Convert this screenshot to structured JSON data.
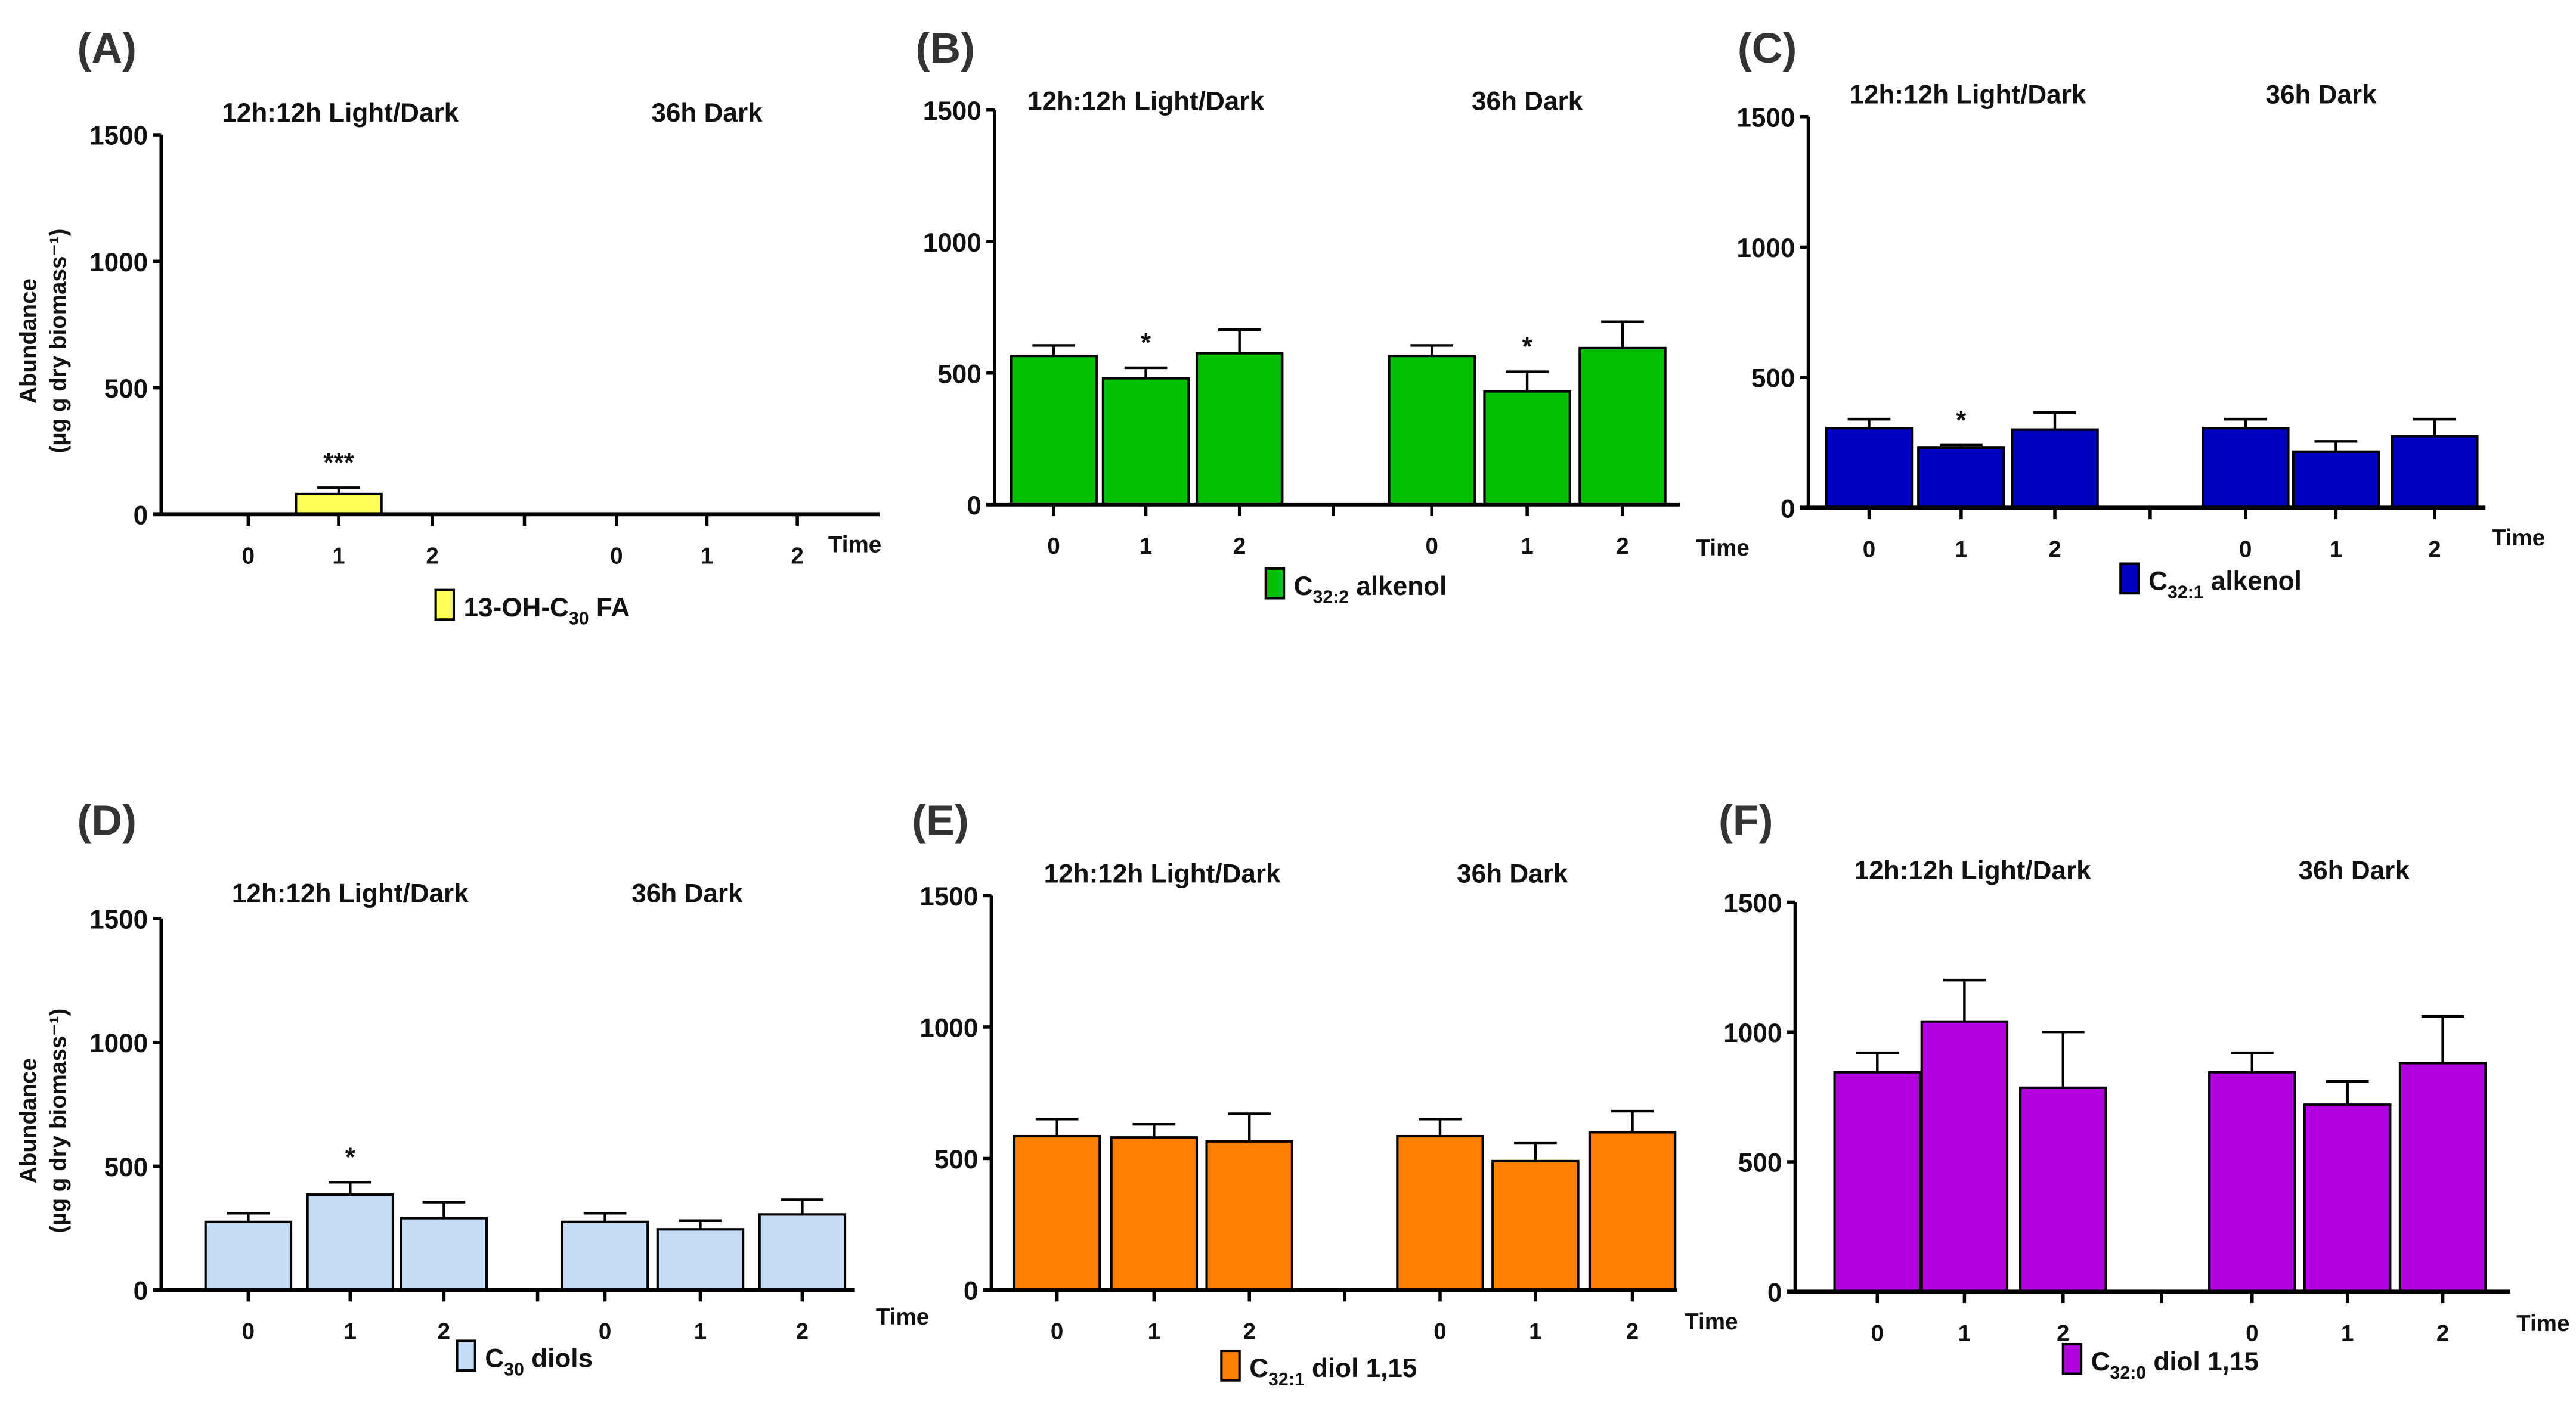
{
  "chart_data": [
    {
      "panel_label": "(A)",
      "type": "bar",
      "group_titles": [
        "12h:12h Light/Dark",
        "36h Dark"
      ],
      "categories": [
        "0",
        "1",
        "2",
        "0",
        "1",
        "2"
      ],
      "xlabel": "Time",
      "ylabel": [
        "Abundance",
        "(µg g dry biomass⁻¹)"
      ],
      "ylim": [
        0,
        1500
      ],
      "yticks": [
        "0",
        "500",
        "1000",
        "1500"
      ],
      "legend": {
        "prefix": "13-OH-C",
        "sub": "30",
        "suffix": "  FA"
      },
      "color": "#ffff55",
      "values": [
        0,
        80,
        0,
        0,
        0,
        0
      ],
      "errors": [
        0,
        25,
        0,
        0,
        0,
        0
      ],
      "significance": [
        "",
        "***",
        "",
        "",
        "",
        ""
      ]
    },
    {
      "panel_label": "(B)",
      "type": "bar",
      "group_titles": [
        "12h:12h Light/Dark",
        "36h Dark"
      ],
      "categories": [
        "0",
        "1",
        "2",
        "0",
        "1",
        "2"
      ],
      "xlabel": "Time",
      "ylabel": null,
      "ylim": [
        0,
        1500
      ],
      "yticks": [
        "0",
        "500",
        "1000",
        "1500"
      ],
      "legend": {
        "prefix": "C",
        "sub": "32:2",
        "suffix": " alkenol"
      },
      "color": "#00c000",
      "values": [
        565,
        480,
        575,
        565,
        430,
        595
      ],
      "errors": [
        40,
        40,
        90,
        40,
        75,
        100
      ],
      "significance": [
        "",
        "*",
        "",
        "",
        "*",
        ""
      ]
    },
    {
      "panel_label": "(C)",
      "type": "bar",
      "group_titles": [
        "12h:12h Light/Dark",
        "36h Dark"
      ],
      "categories": [
        "0",
        "1",
        "2",
        "0",
        "1",
        "2"
      ],
      "xlabel": "Time",
      "ylabel": null,
      "ylim": [
        0,
        1500
      ],
      "yticks": [
        "0",
        "500",
        "1000",
        "1500"
      ],
      "legend": {
        "prefix": "C",
        "sub": "32:1",
        "suffix": " alkenol"
      },
      "color": "#0000c0",
      "values": [
        305,
        230,
        300,
        305,
        215,
        275
      ],
      "errors": [
        35,
        10,
        65,
        35,
        40,
        65
      ],
      "significance": [
        "",
        "*",
        "",
        "",
        "",
        ""
      ]
    },
    {
      "panel_label": "(D)",
      "type": "bar",
      "group_titles": [
        "12h:12h Light/Dark",
        "36h Dark"
      ],
      "categories": [
        "0",
        "1",
        "2",
        "0",
        "1",
        "2"
      ],
      "xlabel": "Time",
      "ylabel": [
        "Abundance",
        "(µg g dry biomass⁻¹)"
      ],
      "ylim": [
        0,
        1500
      ],
      "yticks": [
        "0",
        "500",
        "1000",
        "1500"
      ],
      "legend": {
        "prefix": "C",
        "sub": "30",
        "suffix": " diols"
      },
      "color": "#c6dbf5",
      "values": [
        275,
        385,
        290,
        275,
        245,
        305
      ],
      "errors": [
        35,
        50,
        65,
        35,
        35,
        60
      ],
      "significance": [
        "",
        "*",
        "",
        "",
        "",
        ""
      ]
    },
    {
      "panel_label": "(E)",
      "type": "bar",
      "group_titles": [
        "12h:12h Light/Dark",
        "36h Dark"
      ],
      "categories": [
        "0",
        "1",
        "2",
        "0",
        "1",
        "2"
      ],
      "xlabel": "Time",
      "ylabel": null,
      "ylim": [
        0,
        1500
      ],
      "yticks": [
        "0",
        "500",
        "1000",
        "1500"
      ],
      "legend": {
        "prefix": "C",
        "sub": "32:1",
        "suffix": " diol 1,15"
      },
      "color": "#ff8000",
      "values": [
        585,
        580,
        565,
        585,
        490,
        600
      ],
      "errors": [
        65,
        50,
        105,
        65,
        70,
        80
      ],
      "significance": [
        "",
        "",
        "",
        "",
        "",
        ""
      ]
    },
    {
      "panel_label": "(F)",
      "type": "bar",
      "group_titles": [
        "12h:12h Light/Dark",
        "36h Dark"
      ],
      "categories": [
        "0",
        "1",
        "2",
        "0",
        "1",
        "2"
      ],
      "xlabel": "Time",
      "ylabel": null,
      "ylim": [
        0,
        1500
      ],
      "yticks": [
        "0",
        "500",
        "1000",
        "1500"
      ],
      "legend": {
        "prefix": "C",
        "sub": "32:0",
        "suffix": " diol 1,15"
      },
      "color": "#b000e0",
      "values": [
        845,
        1040,
        785,
        845,
        720,
        880
      ],
      "errors": [
        75,
        160,
        215,
        75,
        90,
        180
      ],
      "significance": [
        "",
        "",
        "",
        "",
        "",
        ""
      ]
    }
  ]
}
